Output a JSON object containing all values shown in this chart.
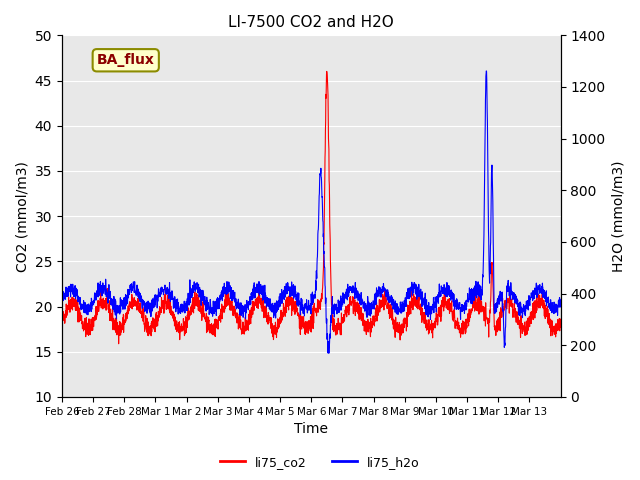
{
  "title": "LI-7500 CO2 and H2O",
  "ylabel_left": "CO2 (mmol/m3)",
  "ylabel_right": "H2O (mmol/m3)",
  "xlabel": "Time",
  "ylim_left": [
    10,
    50
  ],
  "ylim_right": [
    0,
    1400
  ],
  "annotation_text": "BA_flux",
  "annotation_color": "#8B0000",
  "annotation_bg": "#FFFFCC",
  "annotation_border": "#8B8B00",
  "co2_color": "red",
  "h2o_color": "blue",
  "background_color": "#E8E8E8",
  "xtick_labels": [
    "Feb 26",
    "Feb 27",
    "Feb 28",
    "Mar 1",
    "Mar 2",
    "Mar 3",
    "Mar 4",
    "Mar 5",
    "Mar 6",
    "Mar 7",
    "Mar 8",
    "Mar 9",
    "Mar 10",
    "Mar 11",
    "Mar 12",
    "Mar 13"
  ],
  "n_days": 16,
  "seed": 42
}
